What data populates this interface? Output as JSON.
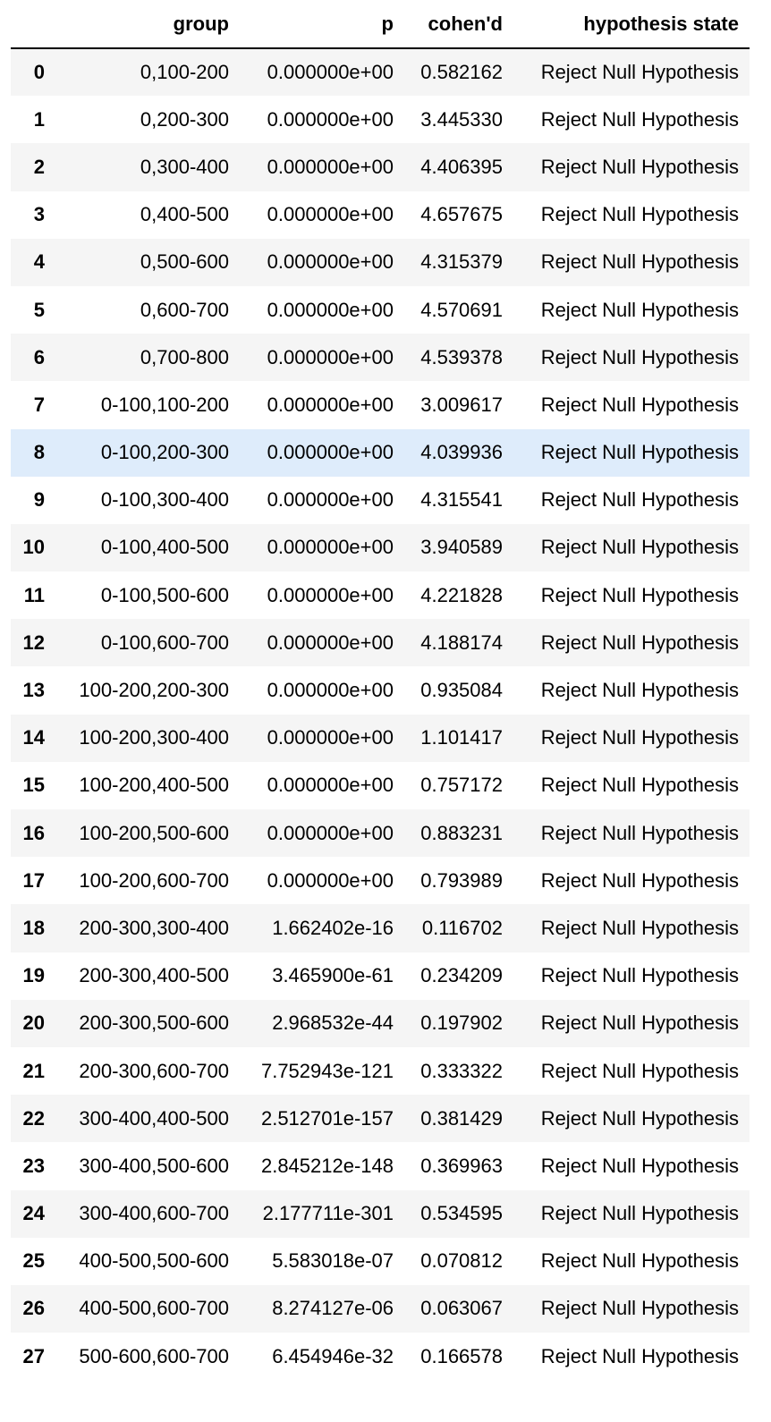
{
  "table": {
    "columns": [
      "",
      "group",
      "p",
      "cohen'd",
      "hypothesis state"
    ],
    "highlighted_row": 8,
    "highlight_color": "#deecfb",
    "stripe_color": "#f5f5f5",
    "rows": [
      {
        "index": "0",
        "group": "0,100-200",
        "p": "0.000000e+00",
        "d": "0.582162",
        "state": "Reject Null Hypothesis"
      },
      {
        "index": "1",
        "group": "0,200-300",
        "p": "0.000000e+00",
        "d": "3.445330",
        "state": "Reject Null Hypothesis"
      },
      {
        "index": "2",
        "group": "0,300-400",
        "p": "0.000000e+00",
        "d": "4.406395",
        "state": "Reject Null Hypothesis"
      },
      {
        "index": "3",
        "group": "0,400-500",
        "p": "0.000000e+00",
        "d": "4.657675",
        "state": "Reject Null Hypothesis"
      },
      {
        "index": "4",
        "group": "0,500-600",
        "p": "0.000000e+00",
        "d": "4.315379",
        "state": "Reject Null Hypothesis"
      },
      {
        "index": "5",
        "group": "0,600-700",
        "p": "0.000000e+00",
        "d": "4.570691",
        "state": "Reject Null Hypothesis"
      },
      {
        "index": "6",
        "group": "0,700-800",
        "p": "0.000000e+00",
        "d": "4.539378",
        "state": "Reject Null Hypothesis"
      },
      {
        "index": "7",
        "group": "0-100,100-200",
        "p": "0.000000e+00",
        "d": "3.009617",
        "state": "Reject Null Hypothesis"
      },
      {
        "index": "8",
        "group": "0-100,200-300",
        "p": "0.000000e+00",
        "d": "4.039936",
        "state": "Reject Null Hypothesis"
      },
      {
        "index": "9",
        "group": "0-100,300-400",
        "p": "0.000000e+00",
        "d": "4.315541",
        "state": "Reject Null Hypothesis"
      },
      {
        "index": "10",
        "group": "0-100,400-500",
        "p": "0.000000e+00",
        "d": "3.940589",
        "state": "Reject Null Hypothesis"
      },
      {
        "index": "11",
        "group": "0-100,500-600",
        "p": "0.000000e+00",
        "d": "4.221828",
        "state": "Reject Null Hypothesis"
      },
      {
        "index": "12",
        "group": "0-100,600-700",
        "p": "0.000000e+00",
        "d": "4.188174",
        "state": "Reject Null Hypothesis"
      },
      {
        "index": "13",
        "group": "100-200,200-300",
        "p": "0.000000e+00",
        "d": "0.935084",
        "state": "Reject Null Hypothesis"
      },
      {
        "index": "14",
        "group": "100-200,300-400",
        "p": "0.000000e+00",
        "d": "1.101417",
        "state": "Reject Null Hypothesis"
      },
      {
        "index": "15",
        "group": "100-200,400-500",
        "p": "0.000000e+00",
        "d": "0.757172",
        "state": "Reject Null Hypothesis"
      },
      {
        "index": "16",
        "group": "100-200,500-600",
        "p": "0.000000e+00",
        "d": "0.883231",
        "state": "Reject Null Hypothesis"
      },
      {
        "index": "17",
        "group": "100-200,600-700",
        "p": "0.000000e+00",
        "d": "0.793989",
        "state": "Reject Null Hypothesis"
      },
      {
        "index": "18",
        "group": "200-300,300-400",
        "p": "1.662402e-16",
        "d": "0.116702",
        "state": "Reject Null Hypothesis"
      },
      {
        "index": "19",
        "group": "200-300,400-500",
        "p": "3.465900e-61",
        "d": "0.234209",
        "state": "Reject Null Hypothesis"
      },
      {
        "index": "20",
        "group": "200-300,500-600",
        "p": "2.968532e-44",
        "d": "0.197902",
        "state": "Reject Null Hypothesis"
      },
      {
        "index": "21",
        "group": "200-300,600-700",
        "p": "7.752943e-121",
        "d": "0.333322",
        "state": "Reject Null Hypothesis"
      },
      {
        "index": "22",
        "group": "300-400,400-500",
        "p": "2.512701e-157",
        "d": "0.381429",
        "state": "Reject Null Hypothesis"
      },
      {
        "index": "23",
        "group": "300-400,500-600",
        "p": "2.845212e-148",
        "d": "0.369963",
        "state": "Reject Null Hypothesis"
      },
      {
        "index": "24",
        "group": "300-400,600-700",
        "p": "2.177711e-301",
        "d": "0.534595",
        "state": "Reject Null Hypothesis"
      },
      {
        "index": "25",
        "group": "400-500,500-600",
        "p": "5.583018e-07",
        "d": "0.070812",
        "state": "Reject Null Hypothesis"
      },
      {
        "index": "26",
        "group": "400-500,600-700",
        "p": "8.274127e-06",
        "d": "0.063067",
        "state": "Reject Null Hypothesis"
      },
      {
        "index": "27",
        "group": "500-600,600-700",
        "p": "6.454946e-32",
        "d": "0.166578",
        "state": "Reject Null Hypothesis"
      }
    ]
  }
}
